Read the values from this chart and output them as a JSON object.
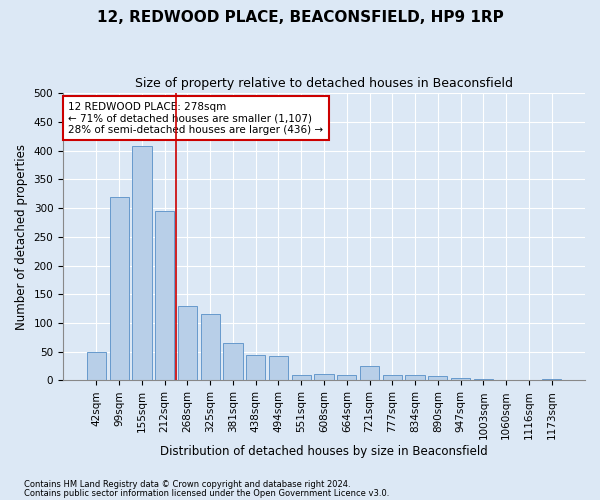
{
  "title": "12, REDWOOD PLACE, BEACONSFIELD, HP9 1RP",
  "subtitle": "Size of property relative to detached houses in Beaconsfield",
  "xlabel": "Distribution of detached houses by size in Beaconsfield",
  "ylabel": "Number of detached properties",
  "footnote1": "Contains HM Land Registry data © Crown copyright and database right 2024.",
  "footnote2": "Contains public sector information licensed under the Open Government Licence v3.0.",
  "categories": [
    "42sqm",
    "99sqm",
    "155sqm",
    "212sqm",
    "268sqm",
    "325sqm",
    "381sqm",
    "438sqm",
    "494sqm",
    "551sqm",
    "608sqm",
    "664sqm",
    "721sqm",
    "777sqm",
    "834sqm",
    "890sqm",
    "947sqm",
    "1003sqm",
    "1060sqm",
    "1116sqm",
    "1173sqm"
  ],
  "values": [
    50,
    320,
    408,
    295,
    130,
    115,
    65,
    45,
    42,
    10,
    12,
    10,
    25,
    10,
    10,
    8,
    5,
    3,
    1,
    1,
    3
  ],
  "bar_color": "#b8cfe8",
  "bar_edge_color": "#6699cc",
  "property_line_x": 3.5,
  "property_line_color": "#cc0000",
  "annotation_text": "12 REDWOOD PLACE: 278sqm\n← 71% of detached houses are smaller (1,107)\n28% of semi-detached houses are larger (436) →",
  "annotation_box_color": "#cc0000",
  "annotation_facecolor": "#ffffff",
  "ylim": [
    0,
    500
  ],
  "yticks": [
    0,
    50,
    100,
    150,
    200,
    250,
    300,
    350,
    400,
    450,
    500
  ],
  "grid_color": "#ffffff",
  "background_color": "#dce8f5",
  "title_fontsize": 11,
  "subtitle_fontsize": 9,
  "axis_label_fontsize": 8.5,
  "tick_fontsize": 7.5,
  "annotation_fontsize": 7.5
}
